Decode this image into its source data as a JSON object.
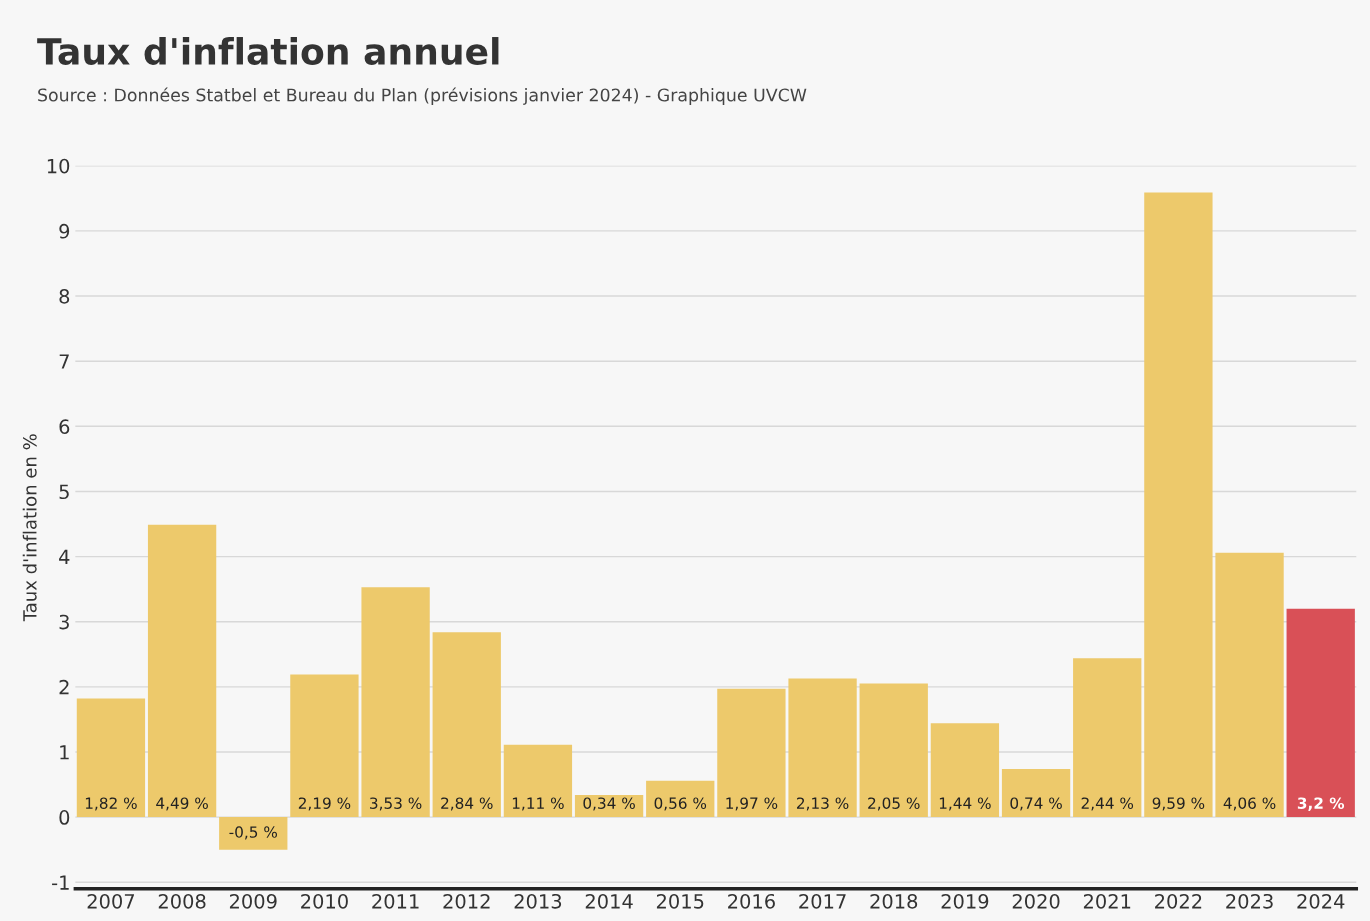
{
  "chart_data": {
    "type": "bar",
    "title": "Taux d'inflation annuel",
    "subtitle": "Source : Données Statbel et Bureau du Plan (prévisions janvier 2024) - Graphique UVCW",
    "ylabel": "Taux d'inflation en %",
    "categories": [
      "2007",
      "2008",
      "2009",
      "2010",
      "2011",
      "2012",
      "2013",
      "2014",
      "2015",
      "2016",
      "2017",
      "2018",
      "2019",
      "2020",
      "2021",
      "2022",
      "2023",
      "2024"
    ],
    "values": [
      1.82,
      4.49,
      -0.5,
      2.19,
      3.53,
      2.84,
      1.11,
      0.34,
      0.56,
      1.97,
      2.13,
      2.05,
      1.44,
      0.74,
      2.44,
      9.59,
      4.06,
      3.2
    ],
    "value_labels": [
      "1,82 %",
      "4,49 %",
      "-0,5 %",
      "2,19 %",
      "3,53 %",
      "2,84 %",
      "1,11 %",
      "0,34 %",
      "0,56 %",
      "1,97 %",
      "2,13 %",
      "2,05 %",
      "1,44 %",
      "0,74 %",
      "2,44 %",
      "9,59 %",
      "4,06 %",
      "3,2 %"
    ],
    "colors": [
      "#edc96b",
      "#edc96b",
      "#edc96b",
      "#edc96b",
      "#edc96b",
      "#edc96b",
      "#edc96b",
      "#edc96b",
      "#edc96b",
      "#edc96b",
      "#edc96b",
      "#edc96b",
      "#edc96b",
      "#edc96b",
      "#edc96b",
      "#edc96b",
      "#edc96b",
      "#d95057"
    ],
    "ylim": [
      -1.1,
      10
    ],
    "yticks": [
      -1,
      0,
      1,
      2,
      3,
      4,
      5,
      6,
      7,
      8,
      9,
      10
    ],
    "grid": "y",
    "legend": false
  }
}
